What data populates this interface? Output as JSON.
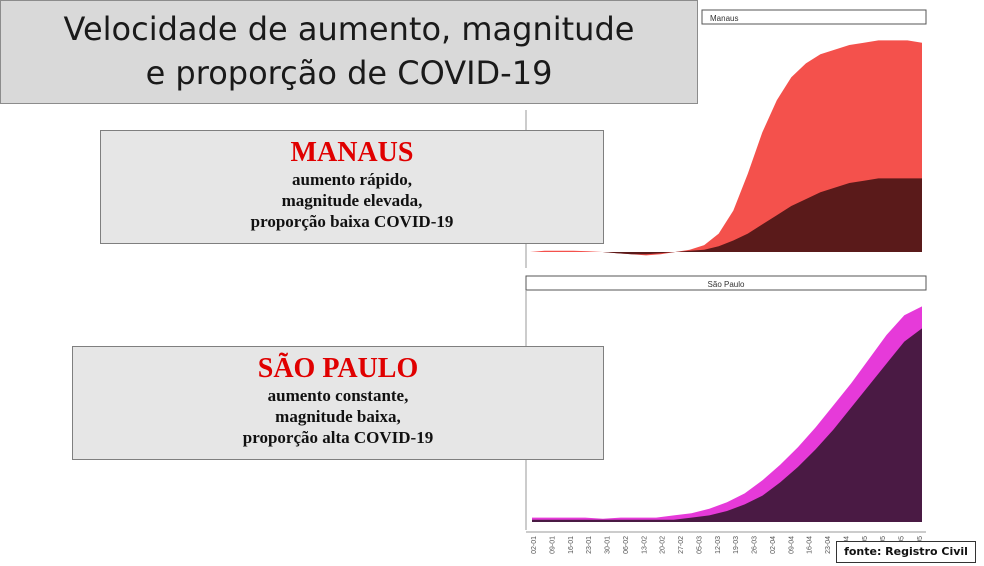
{
  "title": {
    "line1": "Velocidade de aumento, magnitude",
    "line2": "e proporção de COVID-19"
  },
  "manaus_box": {
    "city": "MANAUS",
    "lines": [
      "aumento rápido,",
      "magnitude elevada,",
      "proporção baixa COVID-19"
    ]
  },
  "sao_paulo_box": {
    "city": "SÃO PAULO",
    "lines": [
      "aumento constante,",
      "magnitude baixa,",
      "proporção alta COVID-19"
    ]
  },
  "source_note": "fonte: Registro Civil",
  "chart_data": [
    {
      "type": "area",
      "title": "Manaus",
      "x": [
        1,
        2,
        3,
        4,
        5,
        6,
        7,
        8,
        9,
        10,
        11,
        12,
        13,
        14,
        15,
        16,
        17,
        18,
        19,
        20,
        21,
        22,
        23,
        24,
        25,
        26,
        27,
        28
      ],
      "series": [
        {
          "values": [
            0,
            0.5,
            0.5,
            0.5,
            0.3,
            0,
            -0.5,
            -1,
            -1.5,
            -1,
            0,
            1,
            3,
            8,
            18,
            34,
            52,
            66,
            76,
            82,
            86,
            88,
            90,
            91,
            92,
            92,
            92,
            91
          ]
        },
        {
          "values": [
            0,
            0,
            0,
            0,
            0,
            0,
            -0.5,
            -1,
            -1,
            -0.5,
            0,
            0.5,
            1,
            2.5,
            5,
            8,
            12,
            16,
            20,
            23,
            26,
            28,
            30,
            31,
            32,
            32,
            32,
            32
          ]
        }
      ],
      "colors": [
        "#f4514c",
        "#5a1a1a"
      ]
    },
    {
      "type": "area",
      "title": "São Paulo",
      "x_tick_labels": [
        "02-01",
        "09-01",
        "16-01",
        "23-01",
        "30-01",
        "06-02",
        "13-02",
        "20-02",
        "27-02",
        "05-03",
        "12-03",
        "19-03",
        "26-03",
        "02-04",
        "09-04",
        "16-04",
        "23-04",
        "30-04",
        "07-05",
        "14-05",
        "21-05",
        "28-05"
      ],
      "series": [
        {
          "values": [
            2,
            2,
            2,
            2,
            1.5,
            2,
            2,
            2,
            3,
            4,
            6,
            9,
            13,
            19,
            26,
            34,
            43,
            53,
            63,
            74,
            85,
            94,
            98
          ]
        },
        {
          "values": [
            1,
            1,
            1,
            1,
            1,
            1,
            1,
            1,
            1,
            2,
            3,
            5,
            8,
            12,
            18,
            25,
            33,
            42,
            52,
            62,
            72,
            82,
            88
          ]
        }
      ],
      "colors": [
        "#e63ad9",
        "#4a1a44"
      ]
    }
  ]
}
